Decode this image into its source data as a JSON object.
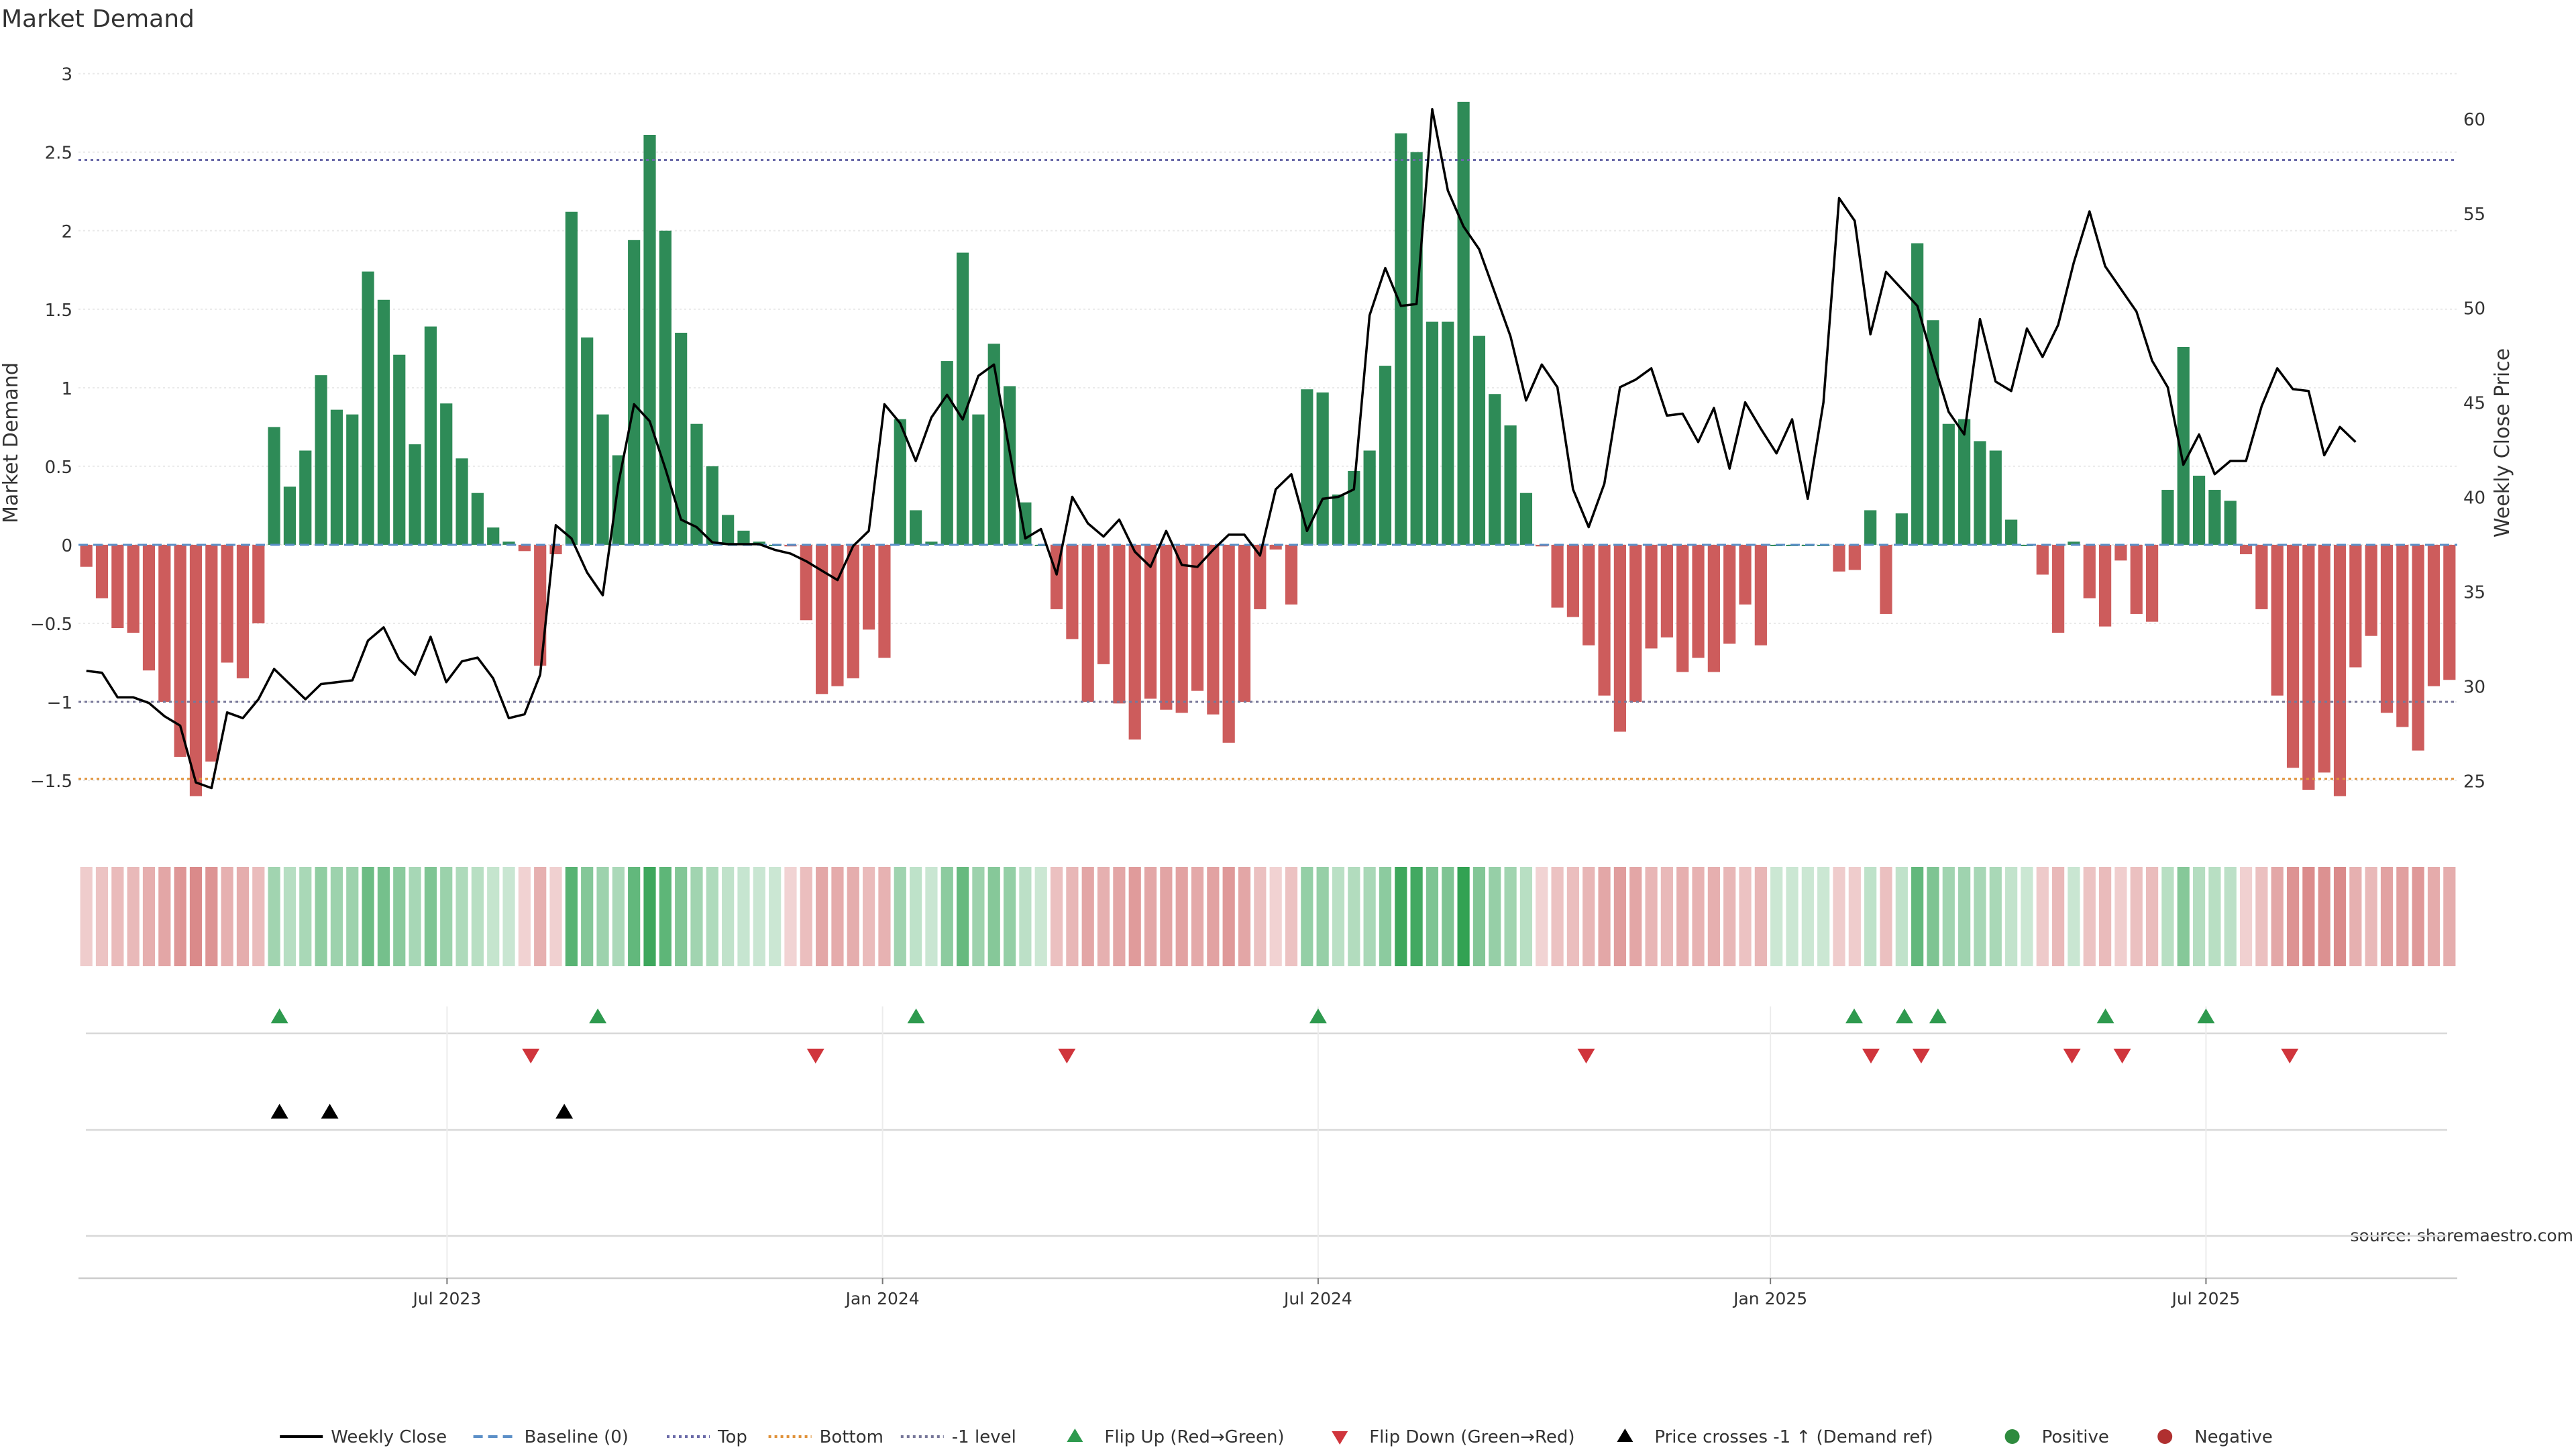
{
  "chart_data": {
    "type": "bar",
    "title": "Market Demand",
    "ylabel": "Market Demand",
    "y2label": "Weekly Close Price",
    "ylim": [
      -1.85,
      3.05
    ],
    "y2lim": [
      22.1,
      62.8
    ],
    "yticks": [
      3,
      2.5,
      2,
      1.5,
      1,
      0.5,
      0,
      -0.5,
      -1,
      -1.5
    ],
    "ytick_labels": [
      "3",
      "2.5",
      "2",
      "1.5",
      "1",
      "0.5",
      "0",
      "−0.5",
      "−1",
      "−1.5"
    ],
    "y2ticks": [
      60,
      55,
      50,
      45,
      40,
      35,
      30,
      25
    ],
    "x_start": "2023-01-30",
    "x_end": "2025-10-20",
    "x_tick_dates": [
      "2023-07-03",
      "2024-01-01",
      "2024-07-01",
      "2025-01-06",
      "2025-07-07"
    ],
    "x_tick_labels": [
      "Jul 2023",
      "Jan 2024",
      "Jul 2024",
      "Jan 2025",
      "Jul 2025"
    ],
    "grid": true,
    "legend_position": "bottom",
    "reference_lines": {
      "top": 2.45,
      "bottom": -1.49,
      "minus_one": -1.0
    },
    "series": [
      {
        "name": "Market Demand",
        "values": [
          -0.14,
          -0.34,
          -0.53,
          -0.56,
          -0.8,
          -1.0,
          -1.35,
          -1.6,
          -1.38,
          -0.75,
          -0.85,
          -0.5,
          0.75,
          0.37,
          0.6,
          1.08,
          0.86,
          0.83,
          1.74,
          1.56,
          1.21,
          0.64,
          1.39,
          0.9,
          0.55,
          0.33,
          0.11,
          0.02,
          -0.04,
          -0.77,
          -0.06,
          2.12,
          1.32,
          0.83,
          0.57,
          1.94,
          2.61,
          2.0,
          1.35,
          0.77,
          0.5,
          0.19,
          0.09,
          0.02,
          0.0,
          -0.01,
          -0.48,
          -0.95,
          -0.9,
          -0.85,
          -0.54,
          -0.72,
          0.8,
          0.22,
          0.02,
          1.17,
          1.86,
          0.83,
          1.28,
          1.01,
          0.27,
          0.0,
          -0.41,
          -0.6,
          -1.0,
          -0.76,
          -1.01,
          -1.24,
          -0.98,
          -1.05,
          -1.07,
          -0.93,
          -1.08,
          -1.26,
          -1.0,
          -0.41,
          -0.03,
          -0.38,
          0.99,
          0.97,
          0.32,
          0.47,
          0.6,
          1.14,
          2.62,
          2.5,
          1.42,
          1.42,
          2.82,
          1.33,
          0.96,
          0.76,
          0.33,
          -0.01,
          -0.4,
          -0.46,
          -0.64,
          -0.96,
          -1.19,
          -1.0,
          -0.66,
          -0.59,
          -0.81,
          -0.72,
          -0.81,
          -0.63,
          -0.38,
          -0.64,
          0.0,
          0.0,
          0.0,
          0.0,
          -0.17,
          -0.16,
          0.22,
          -0.44,
          0.2,
          1.92,
          1.43,
          0.77,
          0.8,
          0.66,
          0.6,
          0.16,
          0.0,
          -0.19,
          -0.56,
          0.02,
          -0.34,
          -0.52,
          -0.1,
          -0.44,
          -0.49,
          0.35,
          1.26,
          0.44,
          0.35,
          0.28,
          -0.06,
          -0.41,
          -0.96,
          -1.42,
          -1.56,
          -1.45,
          -1.6,
          -0.78,
          -0.58,
          -1.07,
          -1.16,
          -1.31,
          -0.9,
          -0.86
        ]
      },
      {
        "name": "Weekly Close",
        "values": [
          30.8,
          30.7,
          29.4,
          29.4,
          29.1,
          28.4,
          27.9,
          24.9,
          24.6,
          28.6,
          28.3,
          29.3,
          30.9,
          30.1,
          29.3,
          30.1,
          30.2,
          30.3,
          32.4,
          33.1,
          31.4,
          30.6,
          32.6,
          30.2,
          31.3,
          31.5,
          30.4,
          28.3,
          28.5,
          30.6,
          38.5,
          37.8,
          36.0,
          34.8,
          40.7,
          44.9,
          44.0,
          41.5,
          38.8,
          38.4,
          37.6,
          37.5,
          37.5,
          37.5,
          37.2,
          37.0,
          36.6,
          36.1,
          35.6,
          37.4,
          38.2,
          44.9,
          43.9,
          41.9,
          44.2,
          45.4,
          44.1,
          46.4,
          47.0,
          42.4,
          37.8,
          38.3,
          35.9,
          40.0,
          38.6,
          37.9,
          38.8,
          37.1,
          36.3,
          38.2,
          36.4,
          36.3,
          37.2,
          38.0,
          38.0,
          36.9,
          40.4,
          41.2,
          38.2,
          39.9,
          40.0,
          40.4,
          49.6,
          52.1,
          50.1,
          50.2,
          60.5,
          56.2,
          54.3,
          53.1,
          50.8,
          48.5,
          45.1,
          47.0,
          45.8,
          40.4,
          38.4,
          40.7,
          45.8,
          46.2,
          46.8,
          44.3,
          44.4,
          42.9,
          44.7,
          41.5,
          45.0,
          43.6,
          42.3,
          44.1,
          39.9,
          45.0,
          55.8,
          54.6,
          48.6,
          51.9,
          51.0,
          50.1,
          47.2,
          44.5,
          43.3,
          49.4,
          46.1,
          45.6,
          48.9,
          47.4,
          49.1,
          52.4,
          55.1,
          52.2,
          51.0,
          49.8,
          47.2,
          45.8,
          41.7,
          43.3,
          41.2,
          41.9,
          41.9,
          44.8,
          46.8,
          45.7,
          45.6,
          42.2,
          43.7,
          42.9
        ]
      }
    ],
    "demand_strip": {
      "label": "",
      "values": "same-as-market-demand"
    },
    "markers": {
      "flip_up_dates": [
        "2023-04-24",
        "2023-09-04",
        "2024-01-15",
        "2024-07-01",
        "2025-02-10",
        "2025-03-03",
        "2025-03-17",
        "2025-05-26",
        "2025-07-07"
      ],
      "flip_down_dates": [
        "2023-08-07",
        "2023-12-04",
        "2024-03-18",
        "2024-10-21",
        "2025-02-17",
        "2025-03-10",
        "2025-05-12",
        "2025-06-02",
        "2025-08-11"
      ],
      "price_cross_dates": [
        "2023-04-24",
        "2023-05-15",
        "2023-08-21"
      ]
    },
    "legend": [
      {
        "label": "Weekly Close",
        "style": "line",
        "color": "#000000"
      },
      {
        "label": "Baseline (0)",
        "style": "dash",
        "color": "#5b8fc7"
      },
      {
        "label": "Top",
        "style": "dot",
        "color": "#6a6aa8"
      },
      {
        "label": "Bottom",
        "style": "dot",
        "color": "#e0923a"
      },
      {
        "label": "-1 level",
        "style": "dot",
        "color": "#777799"
      },
      {
        "label": "Flip Up (Red→Green)",
        "style": "tri-up",
        "color": "#2e9a4e"
      },
      {
        "label": "Flip Down (Green→Red)",
        "style": "tri-down",
        "color": "#d0353c"
      },
      {
        "label": "Price crosses -1 ↑ (Demand ref)",
        "style": "tri-up",
        "color": "#000000"
      },
      {
        "label": "Positive",
        "style": "dot-marker",
        "color": "#2e8b3e"
      },
      {
        "label": "Negative",
        "style": "dot-marker",
        "color": "#b03030"
      }
    ],
    "source": "source: sharemaestro.com",
    "colors": {
      "positive": "#2e8b57",
      "negative": "#cd5c5c",
      "line": "#000000"
    }
  }
}
